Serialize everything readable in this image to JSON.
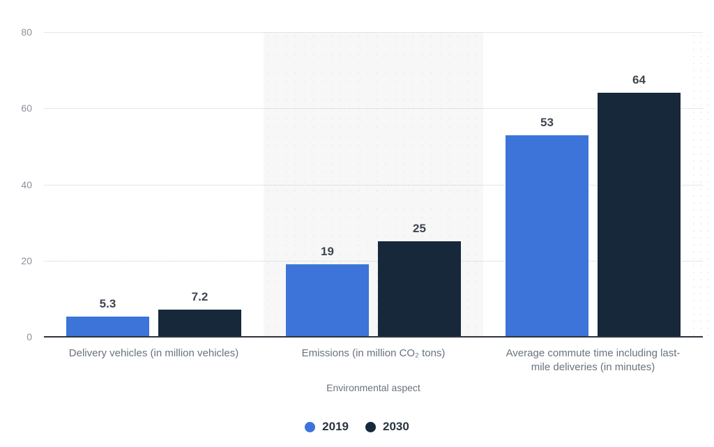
{
  "chart_data": {
    "type": "bar",
    "title": "",
    "xlabel": "Environmental aspect",
    "ylabel": "",
    "ylim": [
      0,
      80
    ],
    "yticks": [
      0,
      20,
      40,
      60,
      80
    ],
    "grid": "horizontal-dotted",
    "legend_position": "bottom-center",
    "categories": [
      "Delivery vehicles (in million vehicles)",
      "Emissions (in million CO₂ tons)",
      "Average commute time including last-mile deliveries (in minutes)"
    ],
    "category_label_lines": [
      [
        "Delivery vehicles (in million vehicles)"
      ],
      [
        "Emissions (in million CO₂ tons)"
      ],
      [
        "Average commute time including last-",
        "mile deliveries (in minutes)"
      ]
    ],
    "series": [
      {
        "name": "2019",
        "color": "#3c74d9",
        "values": [
          5.3,
          19,
          53
        ],
        "labels": [
          "5.3",
          "19",
          "53"
        ]
      },
      {
        "name": "2030",
        "color": "#16283a",
        "values": [
          7.2,
          25,
          64
        ],
        "labels": [
          "7.2",
          "25",
          "64"
        ]
      }
    ],
    "highlight_band_category_index": 1
  },
  "colors": {
    "background": "#ffffff",
    "highlight_band": "#f7f7f7",
    "gridline": "#c9cdd1",
    "axis_line": "#2e343b",
    "tick_label": "#8a909a",
    "category_label": "#6a727c",
    "value_label": "#3f4650",
    "legend_text": "#2a3440"
  }
}
